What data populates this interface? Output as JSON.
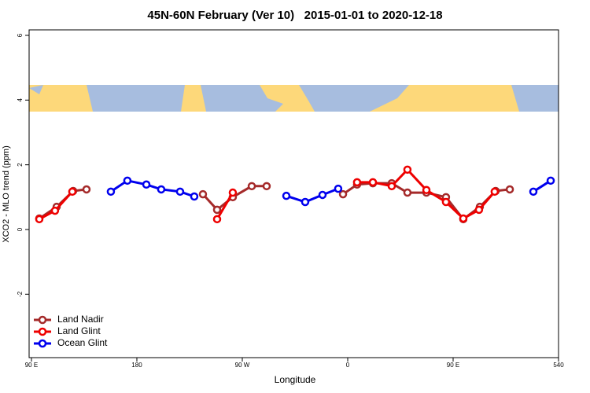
{
  "chart_data": {
    "type": "line",
    "title": "45N-60N February (Ver 10)   2015-01-01 to 2020-12-18",
    "xlabel": "Longitude",
    "ylabel": "XCO2 - MLO trend (ppm)",
    "xlim": [
      88,
      540
    ],
    "ylim": [
      -3.96,
      6.17
    ],
    "xticks": [
      {
        "value": 90,
        "label": "90 E"
      },
      180,
      {
        "value": 270,
        "label": "90 W"
      },
      {
        "value": 360,
        "label": "0"
      },
      {
        "value": 450,
        "label": "90 E"
      },
      540
    ],
    "yticks": [
      6,
      4,
      2,
      0,
      -2
    ],
    "legend": "bottom-left",
    "series": [
      {
        "name": "Land Nadir",
        "color": "#a52a2a",
        "x": [
          96.7,
          111.5,
          125.6,
          137.0,
          null,
          236.4,
          248.5,
          261.9,
          278.1,
          290.8,
          null,
          356.0,
          368.0,
          381.5,
          397.6,
          411.0,
          427.2,
          443.9,
          458.7,
          472.8,
          486.3,
          498.4
        ],
        "values": [
          0.34,
          0.7,
          1.19,
          1.24,
          null,
          1.09,
          0.61,
          1.0,
          1.34,
          1.34,
          null,
          1.09,
          1.39,
          1.43,
          1.43,
          1.14,
          1.14,
          1.0,
          0.32,
          0.7,
          1.19,
          1.24
        ]
      },
      {
        "name": "Land Glint",
        "color": "#ee0000",
        "x": [
          96.7,
          110.1,
          124.9,
          null,
          248.5,
          261.9,
          null,
          368.0,
          381.5,
          397.6,
          411.0,
          427.2,
          443.9,
          458.7,
          472.1,
          485.5
        ],
        "values": [
          0.32,
          0.58,
          1.17,
          null,
          0.32,
          1.14,
          null,
          1.46,
          1.46,
          1.34,
          1.85,
          1.22,
          0.85,
          0.34,
          0.61,
          1.17
        ]
      },
      {
        "name": "Ocean Glint",
        "color": "#0000ee",
        "x": [
          157.8,
          171.9,
          188.1,
          200.8,
          216.9,
          229.0,
          null,
          307.6,
          323.7,
          338.5,
          351.9,
          null,
          518.5,
          533.3
        ],
        "values": [
          1.17,
          1.51,
          1.39,
          1.24,
          1.17,
          1.02,
          null,
          1.04,
          0.85,
          1.07,
          1.26,
          null,
          1.17,
          1.51
        ]
      }
    ]
  }
}
